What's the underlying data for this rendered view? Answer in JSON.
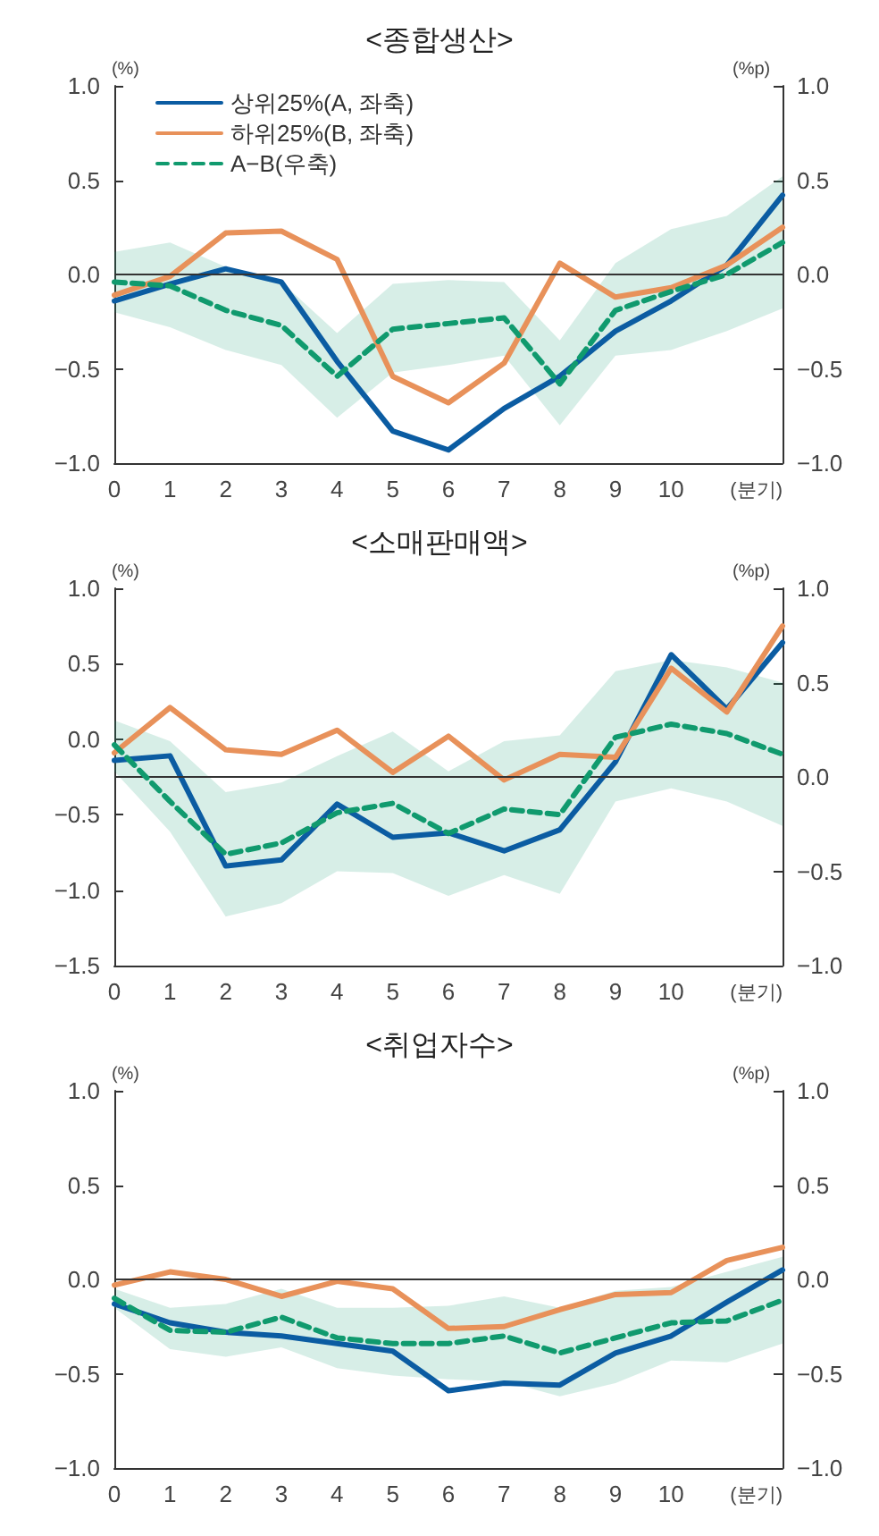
{
  "chart_data": [
    {
      "type": "line",
      "title": "<종합생산>",
      "ylabel": "(%)",
      "y2label": "(%p)",
      "xlabel": "(분기)",
      "categories": [
        "0",
        "1",
        "2",
        "3",
        "4",
        "5",
        "6",
        "7",
        "8",
        "9",
        "10",
        null,
        null
      ],
      "legend": "top left",
      "grid": false,
      "marker": "none",
      "ylim": [
        -1,
        1
      ],
      "yticks": [
        {
          "value": -1,
          "label": "−1.0"
        },
        {
          "value": -0.5,
          "label": "−0.5"
        },
        {
          "value": 0,
          "label": "0.0"
        },
        {
          "value": 0.5,
          "label": "0.5"
        },
        {
          "value": 1,
          "label": "1.0"
        }
      ],
      "y2lim": [
        -1,
        1
      ],
      "y2ticks": [
        {
          "value": -1,
          "label": "−1.0"
        },
        {
          "value": -0.5,
          "label": "−0.5"
        },
        {
          "value": 0,
          "label": "0.0"
        },
        {
          "value": 0.5,
          "label": "0.5"
        },
        {
          "value": 1,
          "label": "1.0"
        }
      ],
      "ref_lines": [
        {
          "axis": "y",
          "value": 0
        }
      ],
      "series": [
        {
          "name": "상위25%(A, 좌축)",
          "color": "#0b5ca2",
          "line_style": "solid",
          "values": [
            -0.14,
            -0.05,
            0.03,
            -0.04,
            -0.46,
            -0.83,
            -0.93,
            -0.71,
            -0.54,
            -0.3,
            -0.14,
            0.05,
            0.42
          ]
        },
        {
          "name": "하위25%(B, 좌축)",
          "color": "#e8915a",
          "line_style": "solid",
          "values": [
            -0.11,
            -0.01,
            0.22,
            0.23,
            0.08,
            -0.54,
            -0.68,
            -0.47,
            0.06,
            -0.12,
            -0.07,
            0.05,
            0.25
          ]
        },
        {
          "name": "A−B(우축)",
          "color": "#109a6e",
          "line_style": "dashed",
          "axis": "y2",
          "values": [
            -0.04,
            -0.06,
            -0.19,
            -0.27,
            -0.54,
            -0.29,
            -0.26,
            -0.23,
            -0.58,
            -0.19,
            -0.09,
            0.0,
            0.17
          ],
          "lower": [
            -0.2,
            -0.28,
            -0.4,
            -0.48,
            -0.76,
            -0.52,
            -0.48,
            -0.43,
            -0.8,
            -0.43,
            -0.4,
            -0.3,
            -0.18
          ],
          "upper": [
            0.12,
            0.17,
            0.04,
            -0.04,
            -0.31,
            -0.05,
            -0.03,
            -0.04,
            -0.35,
            0.06,
            0.24,
            0.31,
            0.52
          ]
        }
      ]
    },
    {
      "type": "line",
      "title": "<소매판매액>",
      "ylabel": "(%)",
      "y2label": "(%p)",
      "xlabel": "(분기)",
      "categories": [
        "0",
        "1",
        "2",
        "3",
        "4",
        "5",
        "6",
        "7",
        "8",
        "9",
        "10",
        null,
        null
      ],
      "legend": false,
      "grid": false,
      "marker": "none",
      "ylim": [
        -1.5,
        1
      ],
      "yticks": [
        {
          "value": -1.5,
          "label": "−1.5"
        },
        {
          "value": -1,
          "label": "−1.0"
        },
        {
          "value": -0.5,
          "label": "−0.5"
        },
        {
          "value": 0,
          "label": "0.0"
        },
        {
          "value": 0.5,
          "label": "0.5"
        },
        {
          "value": 1,
          "label": "1.0"
        }
      ],
      "y2lim": [
        -1,
        1
      ],
      "y2ticks": [
        {
          "value": -1,
          "label": "−1.0"
        },
        {
          "value": -0.5,
          "label": "−0.5"
        },
        {
          "value": 0,
          "label": "0.0"
        },
        {
          "value": 0.5,
          "label": "0.5"
        },
        {
          "value": 1,
          "label": "1.0"
        }
      ],
      "ref_lines": [
        {
          "axis": "y2",
          "value": 0
        }
      ],
      "series": [
        {
          "color": "#0b5ca2",
          "line_style": "solid",
          "values": [
            -0.14,
            -0.11,
            -0.84,
            -0.8,
            -0.43,
            -0.65,
            -0.62,
            -0.74,
            -0.6,
            -0.15,
            0.56,
            0.2,
            0.64
          ]
        },
        {
          "color": "#e8915a",
          "line_style": "solid",
          "values": [
            -0.09,
            0.21,
            -0.07,
            -0.1,
            0.06,
            -0.22,
            0.02,
            -0.27,
            -0.1,
            -0.12,
            0.47,
            0.18,
            0.75
          ]
        },
        {
          "color": "#109a6e",
          "line_style": "dashed",
          "axis": "y2",
          "values": [
            0.17,
            -0.13,
            -0.41,
            -0.35,
            -0.19,
            -0.14,
            -0.3,
            -0.17,
            -0.2,
            0.21,
            0.28,
            0.23,
            0.12
          ],
          "lower": [
            0.03,
            -0.29,
            -0.74,
            -0.67,
            -0.5,
            -0.51,
            -0.63,
            -0.52,
            -0.62,
            -0.13,
            -0.06,
            -0.13,
            -0.26
          ],
          "upper": [
            0.3,
            0.19,
            -0.08,
            -0.03,
            0.11,
            0.24,
            0.03,
            0.19,
            0.22,
            0.56,
            0.62,
            0.58,
            0.5
          ]
        }
      ]
    },
    {
      "type": "line",
      "title": "<취업자수>",
      "ylabel": "(%)",
      "y2label": "(%p)",
      "xlabel": "(분기)",
      "categories": [
        "0",
        "1",
        "2",
        "3",
        "4",
        "5",
        "6",
        "7",
        "8",
        "9",
        "10",
        null,
        null
      ],
      "legend": false,
      "grid": false,
      "marker": "none",
      "ylim": [
        -1,
        1
      ],
      "yticks": [
        {
          "value": -1,
          "label": "−1.0"
        },
        {
          "value": -0.5,
          "label": "−0.5"
        },
        {
          "value": 0,
          "label": "0.0"
        },
        {
          "value": 0.5,
          "label": "0.5"
        },
        {
          "value": 1,
          "label": "1.0"
        }
      ],
      "y2lim": [
        -1,
        1
      ],
      "y2ticks": [
        {
          "value": -1,
          "label": "−1.0"
        },
        {
          "value": -0.5,
          "label": "−0.5"
        },
        {
          "value": 0,
          "label": "0.0"
        },
        {
          "value": 0.5,
          "label": "0.5"
        },
        {
          "value": 1,
          "label": "1.0"
        }
      ],
      "ref_lines": [
        {
          "axis": "y",
          "value": 0
        }
      ],
      "series": [
        {
          "color": "#0b5ca2",
          "line_style": "solid",
          "values": [
            -0.13,
            -0.23,
            -0.28,
            -0.3,
            -0.34,
            -0.38,
            -0.59,
            -0.55,
            -0.56,
            -0.39,
            -0.3,
            -0.12,
            0.05
          ]
        },
        {
          "color": "#e8915a",
          "line_style": "solid",
          "values": [
            -0.03,
            0.04,
            0.0,
            -0.09,
            -0.01,
            -0.05,
            -0.26,
            -0.25,
            -0.16,
            -0.08,
            -0.07,
            0.1,
            0.17
          ]
        },
        {
          "color": "#109a6e",
          "line_style": "dashed",
          "axis": "y2",
          "values": [
            -0.1,
            -0.27,
            -0.28,
            -0.2,
            -0.31,
            -0.34,
            -0.34,
            -0.3,
            -0.39,
            -0.31,
            -0.23,
            -0.22,
            -0.11
          ],
          "lower": [
            -0.15,
            -0.37,
            -0.41,
            -0.36,
            -0.47,
            -0.51,
            -0.53,
            -0.54,
            -0.62,
            -0.55,
            -0.43,
            -0.44,
            -0.34
          ],
          "upper": [
            -0.05,
            -0.15,
            -0.13,
            -0.05,
            -0.15,
            -0.15,
            -0.14,
            -0.09,
            -0.15,
            -0.06,
            -0.04,
            0.04,
            0.12
          ]
        }
      ]
    }
  ]
}
